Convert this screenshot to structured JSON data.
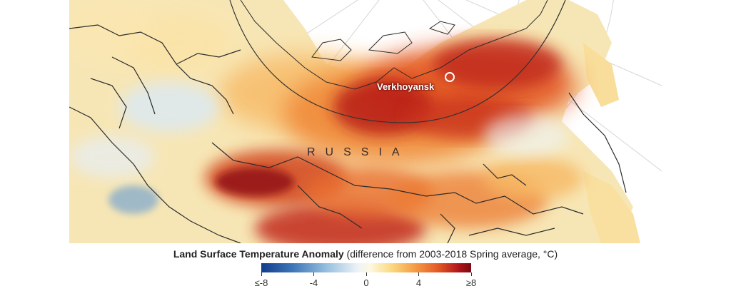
{
  "map": {
    "region_label": "RUSSIA",
    "city_label": "Verkhoyansk",
    "colors": {
      "cold": "#113d8c",
      "neutral": "#f5f3ea",
      "warm": "#f6a24a",
      "hot": "#7a0a12",
      "border": "#2b2b2b",
      "arctic_circle": "#333333"
    }
  },
  "legend": {
    "title": "Land Surface Temperature Anomaly",
    "subtitle": "(difference from 2003-2018 Spring average, °C)",
    "ticks": [
      "≤-8",
      "-4",
      "0",
      "4",
      "≥8"
    ],
    "range": [
      -8,
      8
    ]
  }
}
